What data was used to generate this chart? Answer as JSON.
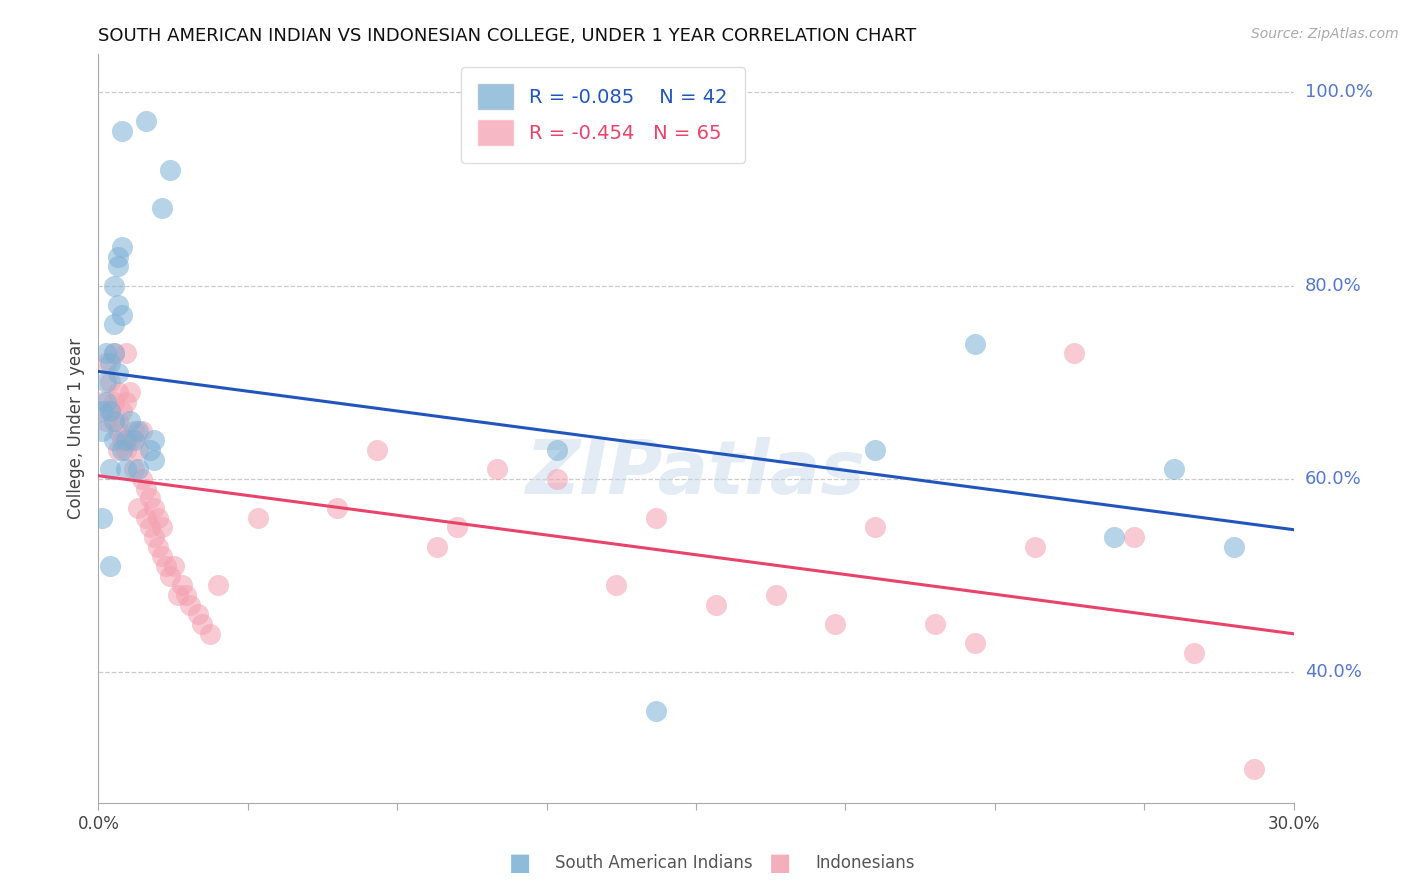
{
  "title": "SOUTH AMERICAN INDIAN VS INDONESIAN COLLEGE, UNDER 1 YEAR CORRELATION CHART",
  "source": "Source: ZipAtlas.com",
  "ylabel": "College, Under 1 year",
  "right_yticks": [
    100.0,
    80.0,
    60.0,
    40.0
  ],
  "xmin": 0.0,
  "xmax": 0.3,
  "ymin": 0.265,
  "ymax": 1.04,
  "blue_label": "South American Indians",
  "pink_label": "Indonesians",
  "blue_R": "-0.085",
  "blue_N": "42",
  "pink_R": "-0.454",
  "pink_N": "65",
  "blue_color": "#7BAFD4",
  "pink_color": "#F4A0B0",
  "blue_line_color": "#2255BB",
  "pink_line_color": "#E8436A",
  "watermark": "ZIPatlas",
  "blue_scatter_x": [
    0.001,
    0.002,
    0.002,
    0.001,
    0.003,
    0.002,
    0.003,
    0.004,
    0.004,
    0.003,
    0.005,
    0.004,
    0.005,
    0.006,
    0.004,
    0.005,
    0.006,
    0.007,
    0.007,
    0.006,
    0.005,
    0.004,
    0.008,
    0.009,
    0.01,
    0.013,
    0.01,
    0.014,
    0.014,
    0.012,
    0.016,
    0.018,
    0.14,
    0.195,
    0.001,
    0.003,
    0.006,
    0.115,
    0.22,
    0.27,
    0.285,
    0.255
  ],
  "blue_scatter_y": [
    0.67,
    0.7,
    0.68,
    0.65,
    0.67,
    0.73,
    0.72,
    0.64,
    0.66,
    0.61,
    0.82,
    0.8,
    0.83,
    0.84,
    0.76,
    0.78,
    0.63,
    0.61,
    0.64,
    0.77,
    0.71,
    0.73,
    0.66,
    0.64,
    0.65,
    0.63,
    0.61,
    0.64,
    0.62,
    0.97,
    0.88,
    0.92,
    0.36,
    0.63,
    0.56,
    0.51,
    0.96,
    0.63,
    0.74,
    0.61,
    0.53,
    0.54
  ],
  "pink_scatter_x": [
    0.001,
    0.002,
    0.002,
    0.003,
    0.003,
    0.004,
    0.004,
    0.005,
    0.005,
    0.005,
    0.005,
    0.006,
    0.006,
    0.007,
    0.007,
    0.007,
    0.008,
    0.008,
    0.009,
    0.009,
    0.01,
    0.01,
    0.011,
    0.011,
    0.012,
    0.012,
    0.013,
    0.013,
    0.014,
    0.014,
    0.015,
    0.015,
    0.016,
    0.016,
    0.017,
    0.018,
    0.019,
    0.02,
    0.021,
    0.022,
    0.023,
    0.025,
    0.026,
    0.028,
    0.03,
    0.04,
    0.06,
    0.07,
    0.085,
    0.09,
    0.1,
    0.115,
    0.13,
    0.14,
    0.155,
    0.17,
    0.185,
    0.195,
    0.21,
    0.22,
    0.235,
    0.245,
    0.26,
    0.275,
    0.29
  ],
  "pink_scatter_y": [
    0.68,
    0.72,
    0.66,
    0.67,
    0.7,
    0.73,
    0.68,
    0.65,
    0.66,
    0.69,
    0.63,
    0.67,
    0.64,
    0.73,
    0.68,
    0.63,
    0.69,
    0.64,
    0.65,
    0.61,
    0.57,
    0.63,
    0.6,
    0.65,
    0.59,
    0.56,
    0.58,
    0.55,
    0.57,
    0.54,
    0.56,
    0.53,
    0.55,
    0.52,
    0.51,
    0.5,
    0.51,
    0.48,
    0.49,
    0.48,
    0.47,
    0.46,
    0.45,
    0.44,
    0.49,
    0.56,
    0.57,
    0.63,
    0.53,
    0.55,
    0.61,
    0.6,
    0.49,
    0.56,
    0.47,
    0.48,
    0.45,
    0.55,
    0.45,
    0.43,
    0.53,
    0.73,
    0.54,
    0.42,
    0.3
  ]
}
